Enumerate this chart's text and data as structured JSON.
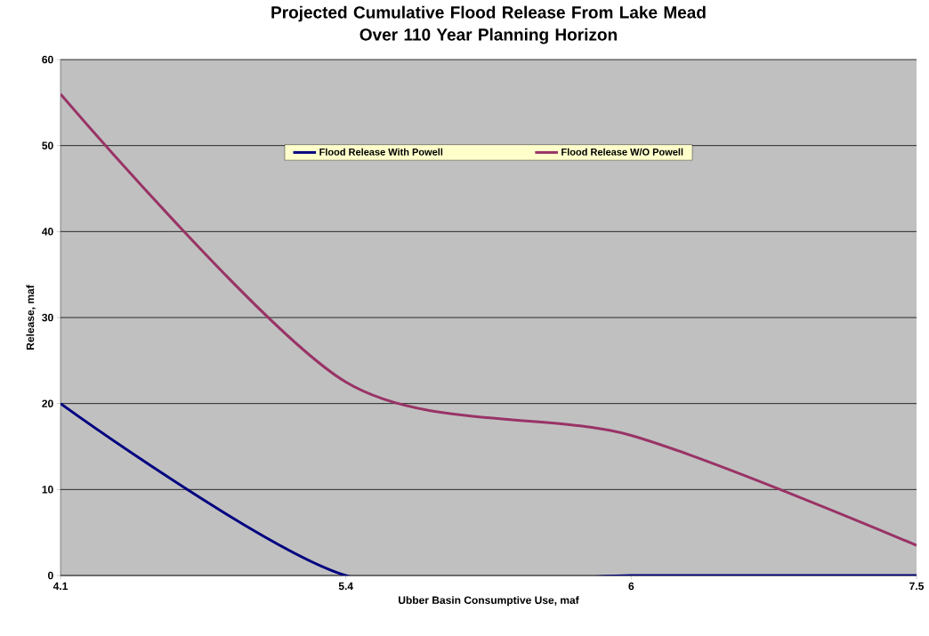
{
  "chart_data": {
    "type": "line",
    "title": "Projected Cumulative Flood Release From Lake Mead\nOver 110 Year Planning Horizon",
    "xlabel": "Ubber Basin Consumptive Use, maf",
    "ylabel": "Release, maf",
    "categories": [
      "4.1",
      "5.4",
      "6",
      "7.5"
    ],
    "series": [
      {
        "name": "Flood Release With Powell",
        "color": "#000080",
        "values": [
          20,
          0,
          0,
          0
        ]
      },
      {
        "name": "Flood Release W/O Powell",
        "color": "#993366",
        "values": [
          56,
          22.5,
          16.3,
          3.5
        ]
      }
    ],
    "ylim": [
      0,
      60
    ],
    "yticks": [
      0,
      10,
      20,
      30,
      40,
      50,
      60
    ],
    "grid": "y",
    "legend": "top",
    "marker": "none",
    "line_style": "solid"
  }
}
